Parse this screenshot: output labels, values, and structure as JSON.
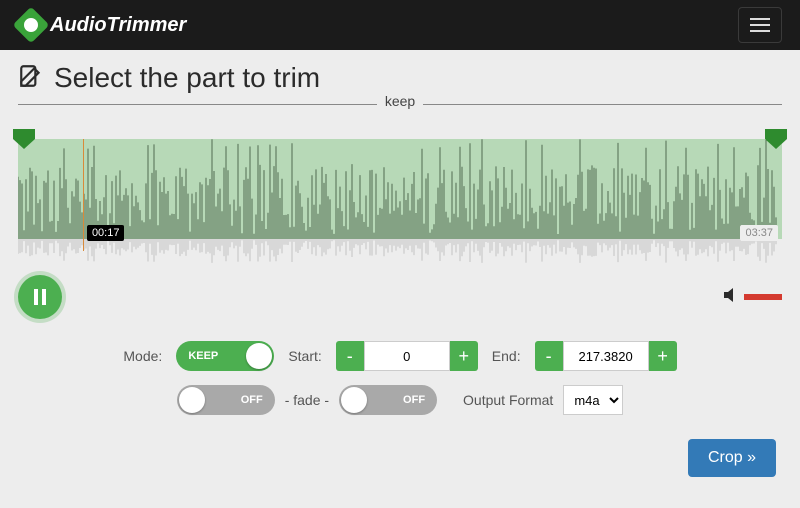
{
  "brand": {
    "name": "AudioTrimmer"
  },
  "title": "Select the part to trim",
  "divider_label": "keep",
  "waveform": {
    "selection_color": "#b7d9b7",
    "bar_color": "#506b50",
    "reflection_color": "#c4c4c4",
    "handle_color": "#2e8b2e",
    "playhead_color": "#d98a3a",
    "playhead_pct": 8.5,
    "current_time": "00:17",
    "duration": "03:37"
  },
  "playback": {
    "state": "pause"
  },
  "volume": {
    "icon_color": "#2b2b2b",
    "bar_color": "#d43a2f"
  },
  "mode": {
    "label": "Mode:",
    "value": "KEEP",
    "on": true
  },
  "start": {
    "label": "Start:",
    "value": "0"
  },
  "end": {
    "label": "End:",
    "value": "217.3820"
  },
  "fade": {
    "label": "- fade -",
    "in": {
      "text": "OFF",
      "on": false
    },
    "out": {
      "text": "OFF",
      "on": false
    }
  },
  "output": {
    "label": "Output Format",
    "value": "m4a"
  },
  "crop": {
    "label": "Crop »"
  },
  "colors": {
    "accent_green": "#4CAF50",
    "accent_blue": "#337ab7",
    "grey_toggle": "#a9a9a9"
  }
}
